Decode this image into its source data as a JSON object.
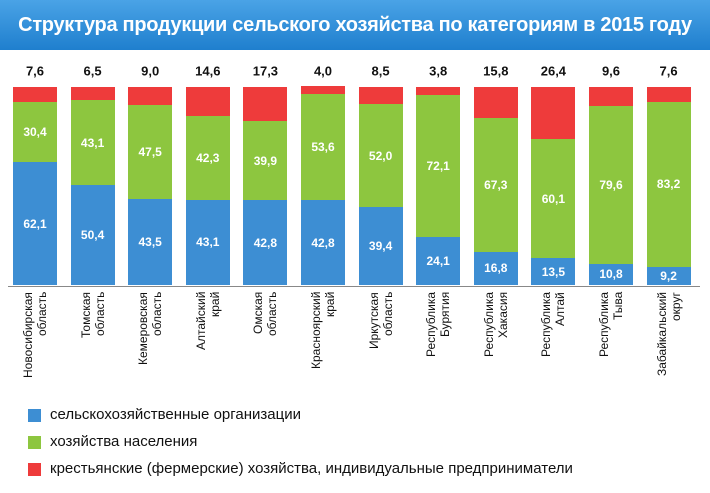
{
  "chart_data": {
    "type": "stacked_bar",
    "title": "Структура продукции сельского хозяйства по категориям в 2015 году",
    "categories": [
      "Новосибирская\nобласть",
      "Томская область",
      "Кемеровская\nобласть",
      "Алтайский\nкрай",
      "Омская\nобласть",
      "Красноярский\nкрай",
      "Иркутская\nобласть",
      "Республика\nБурятия",
      "Республика\nХакасия",
      "Республика\nАлтай",
      "Республика\nТыва",
      "Забайкальский\nокруг"
    ],
    "ylim": [
      0,
      100
    ],
    "series": [
      {
        "name": "сельскохозяйственные организации",
        "color": "#3d8ed3",
        "values": [
          62.1,
          50.4,
          43.5,
          43.1,
          42.8,
          42.8,
          39.4,
          24.1,
          16.8,
          13.5,
          10.8,
          9.2
        ],
        "value_labels": [
          "62,1",
          "50,4",
          "43,5",
          "43,1",
          "42,8",
          "42,8",
          "39,4",
          "24,1",
          "16,8",
          "13,5",
          "10,8",
          "9,2"
        ]
      },
      {
        "name": "хозяйства населения",
        "color": "#8dc63f",
        "values": [
          30.4,
          43.1,
          47.5,
          42.3,
          39.9,
          53.6,
          52.0,
          72.1,
          67.3,
          60.1,
          79.6,
          83.2
        ],
        "value_labels": [
          "30,4",
          "43,1",
          "47,5",
          "42,3",
          "39,9",
          "53,6",
          "52,0",
          "72,1",
          "67,3",
          "60,1",
          "79,6",
          "83,2"
        ]
      },
      {
        "name": "крестьянские (фермерские) хозяйства, индивидуальные предприниматели",
        "color": "#ee3b3b",
        "values": [
          7.6,
          6.5,
          9.0,
          14.6,
          17.3,
          4.0,
          8.5,
          3.8,
          15.8,
          26.4,
          9.6,
          7.6
        ],
        "value_labels": [
          "7,6",
          "6,5",
          "9,0",
          "14,6",
          "17,3",
          "4,0",
          "8,5",
          "3,8",
          "15,8",
          "26,4",
          "9,6",
          "7,6"
        ]
      }
    ]
  }
}
